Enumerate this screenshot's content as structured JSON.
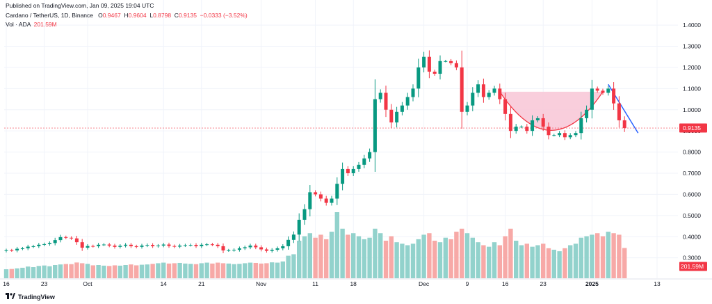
{
  "header": {
    "published": "Published on TradingView.com, Jan 09, 2025 19:04 UTC",
    "symbol": "Cardano / TetherUS, 1D, Binance",
    "ohlc": {
      "o_label": "O",
      "o": "0.9467",
      "h_label": "H",
      "h": "0.9604",
      "l_label": "L",
      "l": "0.8798",
      "c_label": "C",
      "c": "0.9135",
      "change": "−0.0333 (−3.52%)"
    },
    "vol_label": "Vol · ADA",
    "vol_value": "201.59M"
  },
  "footer": {
    "brand": "TradingView",
    "brand_icon": "tradingview-logo-icon"
  },
  "colors": {
    "up": "#089981",
    "down": "#f23645",
    "vol_up": "#92d2cc",
    "vol_down": "#f7a9a7",
    "cup_fill": "#f8c6d6",
    "cup_stroke": "#f23645",
    "trend_line": "#2962ff",
    "price_line": "#f23645"
  },
  "chart_data": {
    "type": "candlestick",
    "title": "Cardano / TetherUS, 1D, Binance",
    "y_range": [
      0.22,
      1.42
    ],
    "y_ticks": [
      "1.4000",
      "1.3000",
      "1.2000",
      "1.1000",
      "1.0000",
      "0.9000",
      "0.8000",
      "0.7000",
      "0.6000",
      "0.5000",
      "0.4000",
      "0.3000"
    ],
    "x_ticks": [
      {
        "label": "16",
        "index": 0
      },
      {
        "label": "23",
        "index": 7
      },
      {
        "label": "Oct",
        "index": 15
      },
      {
        "label": "14",
        "index": 29
      },
      {
        "label": "21",
        "index": 36
      },
      {
        "label": "Nov",
        "index": 47
      },
      {
        "label": "11",
        "index": 57
      },
      {
        "label": "18",
        "index": 64
      },
      {
        "label": "Dec",
        "index": 77
      },
      {
        "label": "9",
        "index": 85
      },
      {
        "label": "16",
        "index": 92
      },
      {
        "label": "23",
        "index": 99
      },
      {
        "label": "2025",
        "index": 108,
        "bold": true
      },
      {
        "label": "13",
        "index": 120
      }
    ],
    "last_price": "0.9135",
    "last_volume": "201.59M",
    "closes": [
      0.336,
      0.335,
      0.343,
      0.345,
      0.353,
      0.355,
      0.362,
      0.365,
      0.37,
      0.384,
      0.398,
      0.395,
      0.392,
      0.374,
      0.348,
      0.356,
      0.355,
      0.362,
      0.363,
      0.358,
      0.352,
      0.357,
      0.362,
      0.355,
      0.352,
      0.358,
      0.361,
      0.355,
      0.358,
      0.363,
      0.356,
      0.353,
      0.358,
      0.36,
      0.361,
      0.355,
      0.362,
      0.364,
      0.362,
      0.355,
      0.335,
      0.336,
      0.338,
      0.345,
      0.35,
      0.358,
      0.35,
      0.34,
      0.333,
      0.338,
      0.345,
      0.355,
      0.385,
      0.41,
      0.48,
      0.53,
      0.61,
      0.6,
      0.58,
      0.56,
      0.58,
      0.65,
      0.72,
      0.7,
      0.72,
      0.74,
      0.77,
      0.8,
      1.05,
      1.08,
      1.0,
      0.94,
      0.99,
      1.02,
      1.06,
      1.1,
      1.2,
      1.25,
      1.18,
      1.17,
      1.23,
      1.23,
      1.22,
      1.2,
      0.99,
      1.02,
      1.08,
      1.12,
      1.06,
      1.08,
      1.1,
      1.05,
      0.98,
      0.9,
      0.92,
      0.92,
      0.9,
      0.95,
      0.96,
      0.92,
      0.88,
      0.88,
      0.89,
      0.87,
      0.88,
      0.89,
      0.96,
      1.0,
      1.1,
      1.09,
      1.08,
      1.1,
      1.03,
      0.95,
      0.9135
    ],
    "volumes_m": [
      60,
      62,
      66,
      70,
      78,
      74,
      82,
      85,
      80,
      88,
      92,
      95,
      94,
      105,
      100,
      96,
      86,
      88,
      84,
      82,
      86,
      84,
      88,
      92,
      86,
      90,
      92,
      96,
      100,
      104,
      98,
      100,
      102,
      98,
      96,
      94,
      100,
      104,
      98,
      104,
      100,
      98,
      94,
      96,
      100,
      104,
      102,
      98,
      100,
      106,
      104,
      112,
      150,
      160,
      250,
      280,
      300,
      270,
      290,
      260,
      310,
      440,
      330,
      290,
      300,
      280,
      260,
      270,
      330,
      300,
      250,
      280,
      240,
      230,
      220,
      230,
      260,
      290,
      300,
      250,
      240,
      270,
      260,
      310,
      330,
      300,
      270,
      240,
      220,
      210,
      240,
      220,
      280,
      330,
      250,
      220,
      230,
      210,
      220,
      230,
      200,
      190,
      180,
      200,
      220,
      230,
      270,
      280,
      290,
      300,
      280,
      310,
      300,
      290,
      201.59
    ]
  }
}
